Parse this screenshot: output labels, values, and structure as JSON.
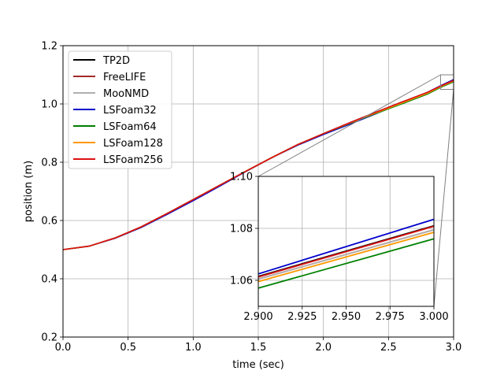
{
  "chart_data": {
    "type": "line",
    "xlabel": "time (sec)",
    "ylabel": "position (m)",
    "xlim": [
      0,
      3.0
    ],
    "ylim": [
      0.2,
      1.2
    ],
    "xticks": [
      "0.0",
      "0.5",
      "1.0",
      "1.5",
      "2.0",
      "2.5",
      "3.0"
    ],
    "yticks": [
      "0.2",
      "0.4",
      "0.6",
      "0.8",
      "1.0",
      "1.2"
    ],
    "grid": true,
    "legend_position": "top-left",
    "series": [
      {
        "name": "TP2D",
        "color": "#000000",
        "x": [
          0,
          0.2,
          0.4,
          0.6,
          0.8,
          1.0,
          1.2,
          1.4,
          1.6,
          1.8,
          2.0,
          2.2,
          2.4,
          2.6,
          2.8,
          2.9,
          3.0
        ],
        "y": [
          0.5,
          0.512,
          0.54,
          0.578,
          0.624,
          0.672,
          0.72,
          0.768,
          0.815,
          0.86,
          0.898,
          0.935,
          0.971,
          1.006,
          1.04,
          1.0615,
          1.081
        ]
      },
      {
        "name": "FreeLIFE",
        "color": "#a52a2a",
        "x": [
          0,
          0.2,
          0.4,
          0.6,
          0.8,
          1.0,
          1.2,
          1.4,
          1.6,
          1.8,
          2.0,
          2.2,
          2.4,
          2.6,
          2.8,
          2.9,
          3.0
        ],
        "y": [
          0.5,
          0.512,
          0.54,
          0.578,
          0.624,
          0.672,
          0.72,
          0.768,
          0.815,
          0.86,
          0.898,
          0.935,
          0.971,
          1.006,
          1.04,
          1.0605,
          1.0795
        ]
      },
      {
        "name": "MooNMD",
        "color": "#b0b0b0",
        "x": [
          0,
          0.2,
          0.4,
          0.6,
          0.8,
          1.0,
          1.2,
          1.4,
          1.6,
          1.8,
          2.0,
          2.2,
          2.4,
          2.6,
          2.8,
          2.9,
          3.0
        ],
        "y": [
          0.5,
          0.512,
          0.54,
          0.578,
          0.624,
          0.672,
          0.72,
          0.768,
          0.815,
          0.86,
          0.898,
          0.935,
          0.971,
          1.006,
          1.04,
          1.0605,
          1.0795
        ]
      },
      {
        "name": "LSFoam32",
        "color": "#0000cc",
        "x": [
          0,
          0.2,
          0.4,
          0.6,
          0.8,
          1.0,
          1.2,
          1.4,
          1.6,
          1.8,
          2.0,
          2.2,
          2.4,
          2.6,
          2.8,
          2.9,
          3.0
        ],
        "y": [
          0.5,
          0.512,
          0.539,
          0.576,
          0.621,
          0.668,
          0.717,
          0.767,
          0.815,
          0.858,
          0.895,
          0.93,
          0.966,
          1.003,
          1.04,
          1.0625,
          1.0835
        ]
      },
      {
        "name": "LSFoam64",
        "color": "#008000",
        "x": [
          0,
          0.2,
          0.4,
          0.6,
          0.8,
          1.0,
          1.2,
          1.4,
          1.6,
          1.8,
          2.0,
          2.2,
          2.4,
          2.6,
          2.8,
          2.9,
          3.0
        ],
        "y": [
          0.5,
          0.512,
          0.54,
          0.578,
          0.624,
          0.672,
          0.72,
          0.768,
          0.815,
          0.86,
          0.898,
          0.933,
          0.967,
          1.0,
          1.034,
          1.057,
          1.076
        ]
      },
      {
        "name": "LSFoam128",
        "color": "#ff9900",
        "x": [
          0,
          0.2,
          0.4,
          0.6,
          0.8,
          1.0,
          1.2,
          1.4,
          1.6,
          1.8,
          2.0,
          2.2,
          2.4,
          2.6,
          2.8,
          2.9,
          3.0
        ],
        "y": [
          0.5,
          0.512,
          0.54,
          0.578,
          0.624,
          0.672,
          0.72,
          0.768,
          0.815,
          0.86,
          0.898,
          0.934,
          0.969,
          1.003,
          1.037,
          1.0595,
          1.0785
        ]
      },
      {
        "name": "LSFoam256",
        "color": "#dd1111",
        "x": [
          0,
          0.2,
          0.4,
          0.6,
          0.8,
          1.0,
          1.2,
          1.4,
          1.6,
          1.8,
          2.0,
          2.2,
          2.4,
          2.6,
          2.8,
          2.9,
          3.0
        ],
        "y": [
          0.5,
          0.512,
          0.54,
          0.578,
          0.624,
          0.672,
          0.72,
          0.768,
          0.815,
          0.86,
          0.898,
          0.935,
          0.971,
          1.006,
          1.04,
          1.0613,
          1.0808
        ]
      }
    ],
    "inset": {
      "xlim": [
        2.9,
        3.0
      ],
      "ylim": [
        1.05,
        1.1
      ],
      "xticks": [
        "2.900",
        "2.925",
        "2.950",
        "2.975",
        "3.000"
      ],
      "yticks": [
        "1.06",
        "1.08",
        "1.10"
      ],
      "grid": true
    }
  }
}
